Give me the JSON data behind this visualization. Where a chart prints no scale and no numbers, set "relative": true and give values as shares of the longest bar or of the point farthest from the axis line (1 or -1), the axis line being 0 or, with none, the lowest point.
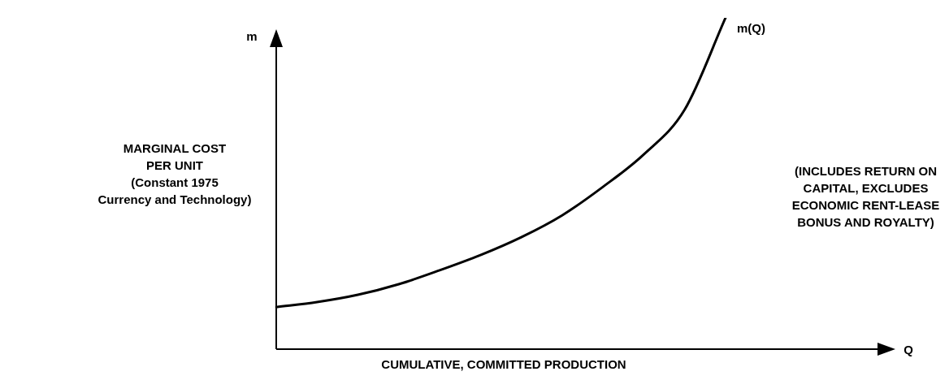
{
  "chart_data": {
    "type": "line",
    "relative": true,
    "xlabel": "CUMULATIVE, COMMITTED PRODUCTION",
    "ylabel": "MARGINAL COST\nPER UNIT\n(Constant 1975\nCurrency and Technology)",
    "categories": [
      null,
      null,
      null,
      null,
      null,
      null,
      null,
      null,
      null,
      null,
      null,
      null,
      null,
      null,
      null,
      null
    ],
    "series": [
      {
        "name": "m(Q)",
        "color": "#000000",
        "values": [
          0.127,
          0.142,
          0.164,
          0.196,
          0.238,
          0.284,
          0.338,
          0.404,
          0.49,
          0.588,
          0.723,
          1,
          null,
          null,
          null,
          null
        ]
      }
    ],
    "annotations": [
      "m",
      "Q",
      "(INCLUDES RETURN ON\nCAPITAL, EXCLUDES\nECONOMIC RENT-LEASE\nBONUS AND ROYALTY)"
    ],
    "grid": false,
    "legend": false,
    "marker": "none",
    "line_style": "solid"
  }
}
